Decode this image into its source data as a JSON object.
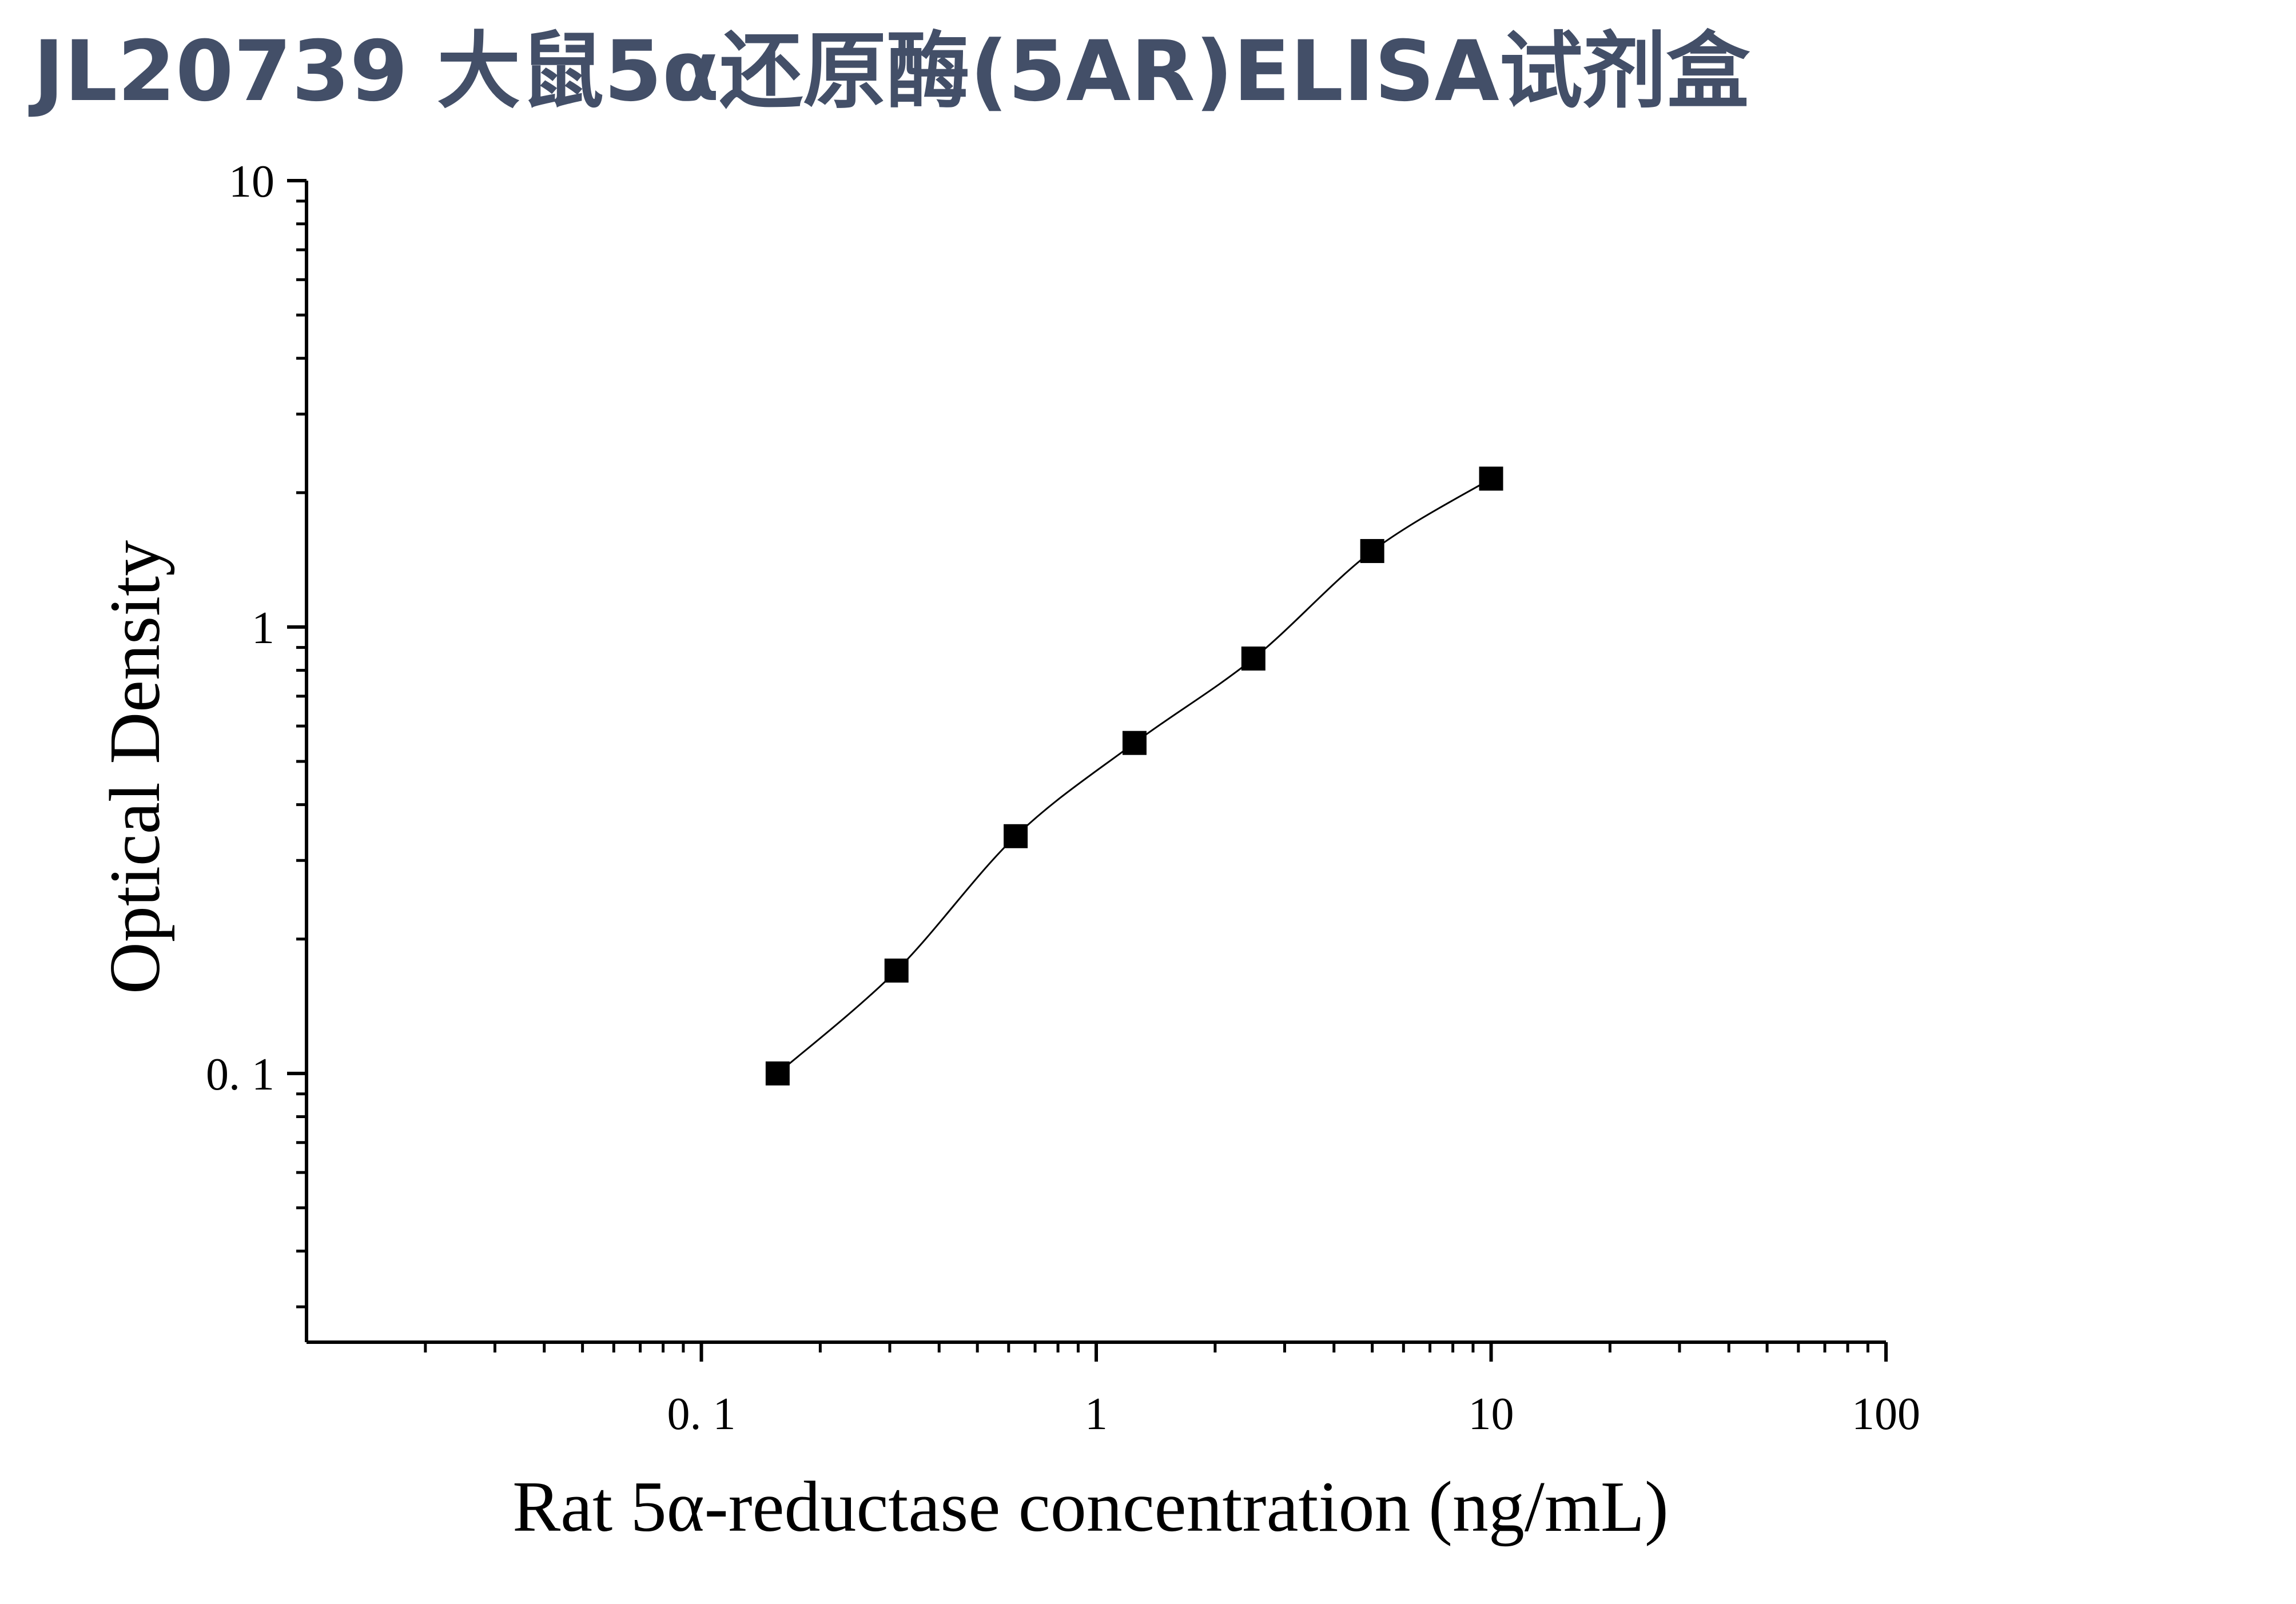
{
  "title": "JL20739 大鼠5α还原酶(5AR)ELISA试剂盒",
  "colors": {
    "title": "#434f68",
    "axis": "#000000",
    "series": "#000000"
  },
  "chart_data": {
    "type": "line",
    "title": "JL20739 大鼠5α还原酶(5AR)ELISA试剂盒",
    "xlabel": "Rat 5α-reductase concentration (ng/mL)",
    "ylabel": "Optical Density",
    "xscale": "log",
    "yscale": "log",
    "xlim": [
      0.01,
      100
    ],
    "ylim": [
      0.025,
      10
    ],
    "xticks": [
      {
        "value": 0.1,
        "label": "0. 1"
      },
      {
        "value": 1,
        "label": "1"
      },
      {
        "value": 10,
        "label": "10"
      },
      {
        "value": 100,
        "label": "100"
      }
    ],
    "yticks": [
      {
        "value": 0.1,
        "label": "0. 1"
      },
      {
        "value": 1,
        "label": "1"
      },
      {
        "value": 10,
        "label": "10"
      }
    ],
    "grid": false,
    "legend": "none",
    "marker": "square",
    "series": [
      {
        "x": [
          0.156,
          0.312,
          0.625,
          1.25,
          2.5,
          5,
          10
        ],
        "y": [
          0.1,
          0.17,
          0.34,
          0.55,
          0.85,
          1.48,
          2.15
        ]
      }
    ]
  }
}
